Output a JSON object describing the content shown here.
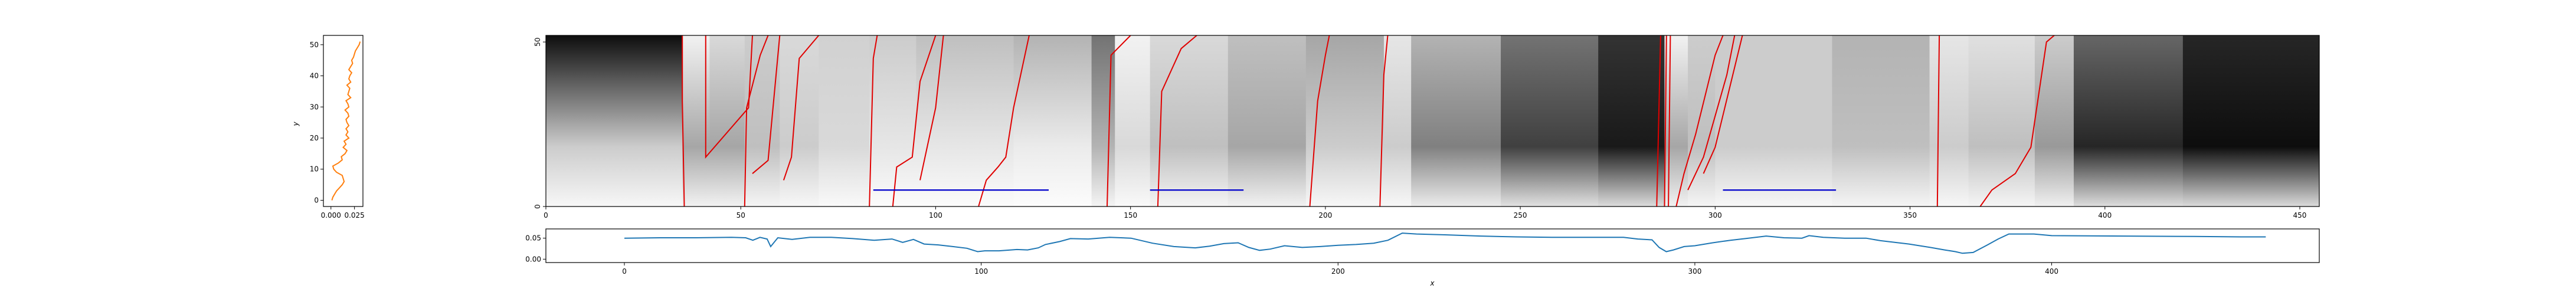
{
  "chart_data": [
    {
      "id": "marginal",
      "type": "line",
      "ylabel": "y",
      "xlabel": "",
      "xticks": [
        "0.000",
        "0.025"
      ],
      "xtick_values": [
        0.0,
        0.025
      ],
      "yticks": [
        "0",
        "10",
        "20",
        "30",
        "40",
        "50"
      ],
      "ytick_values": [
        0,
        10,
        20,
        30,
        40,
        50
      ],
      "xlim": [
        -0.008,
        0.034
      ],
      "ylim": [
        -2,
        53
      ],
      "color": "#ff7f0e",
      "points": [
        [
          0.001,
          0
        ],
        [
          0.002,
          1
        ],
        [
          0.004,
          2
        ],
        [
          0.006,
          3
        ],
        [
          0.009,
          4
        ],
        [
          0.012,
          5
        ],
        [
          0.014,
          6
        ],
        [
          0.013,
          7
        ],
        [
          0.012,
          8
        ],
        [
          0.006,
          9
        ],
        [
          0.003,
          10
        ],
        [
          0.002,
          11
        ],
        [
          0.008,
          12
        ],
        [
          0.012,
          13
        ],
        [
          0.011,
          14
        ],
        [
          0.015,
          15
        ],
        [
          0.017,
          16
        ],
        [
          0.013,
          17
        ],
        [
          0.016,
          18
        ],
        [
          0.014,
          19
        ],
        [
          0.019,
          20
        ],
        [
          0.016,
          21
        ],
        [
          0.018,
          22
        ],
        [
          0.016,
          23
        ],
        [
          0.019,
          24
        ],
        [
          0.017,
          25
        ],
        [
          0.016,
          26
        ],
        [
          0.019,
          27
        ],
        [
          0.018,
          28
        ],
        [
          0.015,
          29
        ],
        [
          0.019,
          30
        ],
        [
          0.018,
          31
        ],
        [
          0.016,
          32
        ],
        [
          0.021,
          33
        ],
        [
          0.018,
          34
        ],
        [
          0.019,
          35
        ],
        [
          0.02,
          36
        ],
        [
          0.017,
          37
        ],
        [
          0.021,
          38
        ],
        [
          0.019,
          39
        ],
        [
          0.02,
          40
        ],
        [
          0.022,
          41
        ],
        [
          0.019,
          42
        ],
        [
          0.021,
          43
        ],
        [
          0.023,
          44
        ],
        [
          0.022,
          45
        ],
        [
          0.024,
          46
        ],
        [
          0.025,
          47
        ],
        [
          0.026,
          48
        ],
        [
          0.028,
          49
        ],
        [
          0.03,
          50
        ],
        [
          0.031,
          51
        ]
      ]
    },
    {
      "id": "heatmap",
      "type": "heatmap",
      "colormap": "gray_r",
      "xlim": [
        0,
        455
      ],
      "ylim": [
        0,
        52
      ],
      "xticks": [
        "0",
        "50",
        "100",
        "150",
        "200",
        "250",
        "300",
        "350",
        "400",
        "450"
      ],
      "xtick_values": [
        0,
        50,
        100,
        150,
        200,
        250,
        300,
        350,
        400,
        450
      ],
      "yticks": [
        "0",
        "50"
      ],
      "ytick_values": [
        0,
        50
      ],
      "segments": [
        [
          0,
          35,
          0.95,
          0.2
        ],
        [
          35,
          42,
          0.05,
          0.35
        ],
        [
          42,
          51,
          0.15,
          0.35
        ],
        [
          51,
          60,
          0.2,
          0.25
        ],
        [
          60,
          70,
          0.15,
          0.2
        ],
        [
          70,
          83,
          0.18,
          0.15
        ],
        [
          83,
          95,
          0.2,
          0.1
        ],
        [
          95,
          120,
          0.25,
          0.1
        ],
        [
          120,
          140,
          0.3,
          0.08
        ],
        [
          140,
          146,
          0.55,
          0.3
        ],
        [
          146,
          155,
          0.05,
          0.15
        ],
        [
          155,
          175,
          0.15,
          0.25
        ],
        [
          175,
          195,
          0.25,
          0.35
        ],
        [
          195,
          215,
          0.35,
          0.2
        ],
        [
          215,
          222,
          0.1,
          0.2
        ],
        [
          222,
          245,
          0.3,
          0.5
        ],
        [
          245,
          270,
          0.55,
          0.75
        ],
        [
          270,
          287,
          0.8,
          0.9
        ],
        [
          287,
          293,
          0.05,
          0.35
        ],
        [
          293,
          300,
          0.2,
          0.25
        ],
        [
          300,
          330,
          0.2,
          0.2
        ],
        [
          330,
          355,
          0.3,
          0.25
        ],
        [
          355,
          365,
          0.1,
          0.2
        ],
        [
          365,
          382,
          0.12,
          0.25
        ],
        [
          382,
          392,
          0.2,
          0.4
        ],
        [
          392,
          420,
          0.6,
          0.85
        ],
        [
          420,
          455,
          0.85,
          0.95
        ]
      ],
      "red_lines": [
        [
          [
            35,
            52
          ],
          [
            35,
            32
          ],
          [
            35.5,
            0
          ]
        ],
        [
          [
            41,
            52
          ],
          [
            41,
            15
          ],
          [
            52,
            30
          ],
          [
            53,
            52
          ]
        ],
        [
          [
            51,
            0
          ],
          [
            51.5,
            30
          ],
          [
            55,
            46
          ],
          [
            57,
            52
          ]
        ],
        [
          [
            53,
            10
          ],
          [
            57,
            14
          ],
          [
            60,
            52
          ]
        ],
        [
          [
            61,
            8
          ],
          [
            63,
            15
          ],
          [
            65,
            45
          ],
          [
            70,
            52
          ]
        ],
        [
          [
            83,
            0
          ],
          [
            84,
            45
          ],
          [
            85,
            52
          ]
        ],
        [
          [
            89,
            0
          ],
          [
            90,
            12
          ],
          [
            94,
            15
          ],
          [
            96,
            38
          ],
          [
            100,
            52
          ]
        ],
        [
          [
            96,
            8
          ],
          [
            100,
            30
          ],
          [
            102,
            52
          ]
        ],
        [
          [
            111,
            0
          ],
          [
            113,
            8
          ],
          [
            116,
            12
          ],
          [
            118,
            15
          ],
          [
            120,
            30
          ],
          [
            124,
            52
          ]
        ],
        [
          [
            144,
            0
          ],
          [
            145,
            46
          ],
          [
            150,
            52
          ]
        ],
        [
          [
            157,
            0
          ],
          [
            158,
            35
          ],
          [
            163,
            48
          ],
          [
            167,
            52
          ]
        ],
        [
          [
            196,
            0
          ],
          [
            198,
            32
          ],
          [
            200,
            46
          ],
          [
            201,
            52
          ]
        ],
        [
          [
            214,
            0
          ],
          [
            215,
            40
          ],
          [
            216,
            52
          ]
        ],
        [
          [
            285,
            0
          ],
          [
            286,
            52
          ]
        ],
        [
          [
            287,
            0
          ],
          [
            287.5,
            52
          ]
        ],
        [
          [
            288,
            0
          ],
          [
            288.5,
            52
          ]
        ],
        [
          [
            290,
            0
          ],
          [
            292,
            10
          ],
          [
            295,
            22
          ],
          [
            300,
            46
          ],
          [
            302,
            52
          ]
        ],
        [
          [
            293,
            5
          ],
          [
            297,
            15
          ],
          [
            303,
            40
          ],
          [
            305,
            52
          ]
        ],
        [
          [
            297,
            10
          ],
          [
            300,
            18
          ],
          [
            307,
            52
          ]
        ],
        [
          [
            357,
            0
          ],
          [
            357.5,
            52
          ]
        ],
        [
          [
            368,
            0
          ],
          [
            371,
            5
          ],
          [
            377,
            10
          ],
          [
            381,
            18
          ],
          [
            385,
            50
          ],
          [
            387,
            52
          ]
        ]
      ],
      "blue_lines": [
        [
          [
            84,
            5
          ],
          [
            129,
            5
          ]
        ],
        [
          [
            155,
            5
          ],
          [
            179,
            5
          ]
        ],
        [
          [
            302,
            5
          ],
          [
            331,
            5
          ]
        ]
      ]
    },
    {
      "id": "profile",
      "type": "line",
      "xlabel": "x",
      "ylabel": "",
      "xticks": [
        "0",
        "100",
        "200",
        "300",
        "400"
      ],
      "xtick_values": [
        0,
        100,
        200,
        300,
        400
      ],
      "yticks": [
        "0.00",
        "0.05"
      ],
      "ytick_values": [
        0.0,
        0.05
      ],
      "xlim": [
        -22,
        475
      ],
      "ylim": [
        -0.008,
        0.072
      ],
      "color": "#1f77b4",
      "points": [
        [
          0,
          0.05
        ],
        [
          10,
          0.051
        ],
        [
          20,
          0.051
        ],
        [
          30,
          0.052
        ],
        [
          34,
          0.051
        ],
        [
          36,
          0.045
        ],
        [
          38,
          0.052
        ],
        [
          40,
          0.048
        ],
        [
          41,
          0.03
        ],
        [
          43,
          0.051
        ],
        [
          47,
          0.047
        ],
        [
          52,
          0.052
        ],
        [
          58,
          0.052
        ],
        [
          64,
          0.049
        ],
        [
          70,
          0.045
        ],
        [
          75,
          0.048
        ],
        [
          78,
          0.04
        ],
        [
          81,
          0.047
        ],
        [
          84,
          0.036
        ],
        [
          88,
          0.034
        ],
        [
          92,
          0.03
        ],
        [
          96,
          0.026
        ],
        [
          99,
          0.018
        ],
        [
          101,
          0.02
        ],
        [
          105,
          0.02
        ],
        [
          110,
          0.023
        ],
        [
          113,
          0.022
        ],
        [
          116,
          0.027
        ],
        [
          118,
          0.035
        ],
        [
          122,
          0.042
        ],
        [
          125,
          0.049
        ],
        [
          130,
          0.048
        ],
        [
          136,
          0.052
        ],
        [
          142,
          0.05
        ],
        [
          148,
          0.038
        ],
        [
          154,
          0.03
        ],
        [
          160,
          0.027
        ],
        [
          164,
          0.031
        ],
        [
          168,
          0.037
        ],
        [
          172,
          0.039
        ],
        [
          175,
          0.028
        ],
        [
          178,
          0.021
        ],
        [
          181,
          0.024
        ],
        [
          185,
          0.032
        ],
        [
          190,
          0.028
        ],
        [
          195,
          0.03
        ],
        [
          200,
          0.033
        ],
        [
          205,
          0.035
        ],
        [
          210,
          0.038
        ],
        [
          214,
          0.045
        ],
        [
          218,
          0.062
        ],
        [
          222,
          0.06
        ],
        [
          230,
          0.058
        ],
        [
          240,
          0.055
        ],
        [
          250,
          0.053
        ],
        [
          260,
          0.052
        ],
        [
          270,
          0.052
        ],
        [
          280,
          0.052
        ],
        [
          284,
          0.048
        ],
        [
          288,
          0.046
        ],
        [
          290,
          0.028
        ],
        [
          292,
          0.018
        ],
        [
          294,
          0.022
        ],
        [
          297,
          0.03
        ],
        [
          300,
          0.032
        ],
        [
          305,
          0.039
        ],
        [
          310,
          0.045
        ],
        [
          315,
          0.05
        ],
        [
          320,
          0.055
        ],
        [
          325,
          0.051
        ],
        [
          330,
          0.05
        ],
        [
          332,
          0.056
        ],
        [
          336,
          0.052
        ],
        [
          342,
          0.05
        ],
        [
          348,
          0.05
        ],
        [
          352,
          0.044
        ],
        [
          356,
          0.04
        ],
        [
          360,
          0.036
        ],
        [
          363,
          0.032
        ],
        [
          366,
          0.028
        ],
        [
          370,
          0.022
        ],
        [
          373,
          0.018
        ],
        [
          375,
          0.014
        ],
        [
          378,
          0.016
        ],
        [
          382,
          0.034
        ],
        [
          385,
          0.048
        ],
        [
          388,
          0.06
        ],
        [
          395,
          0.06
        ],
        [
          400,
          0.056
        ],
        [
          420,
          0.055
        ],
        [
          440,
          0.054
        ],
        [
          460,
          0.053
        ],
        [
          453,
          0.053
        ]
      ]
    }
  ]
}
